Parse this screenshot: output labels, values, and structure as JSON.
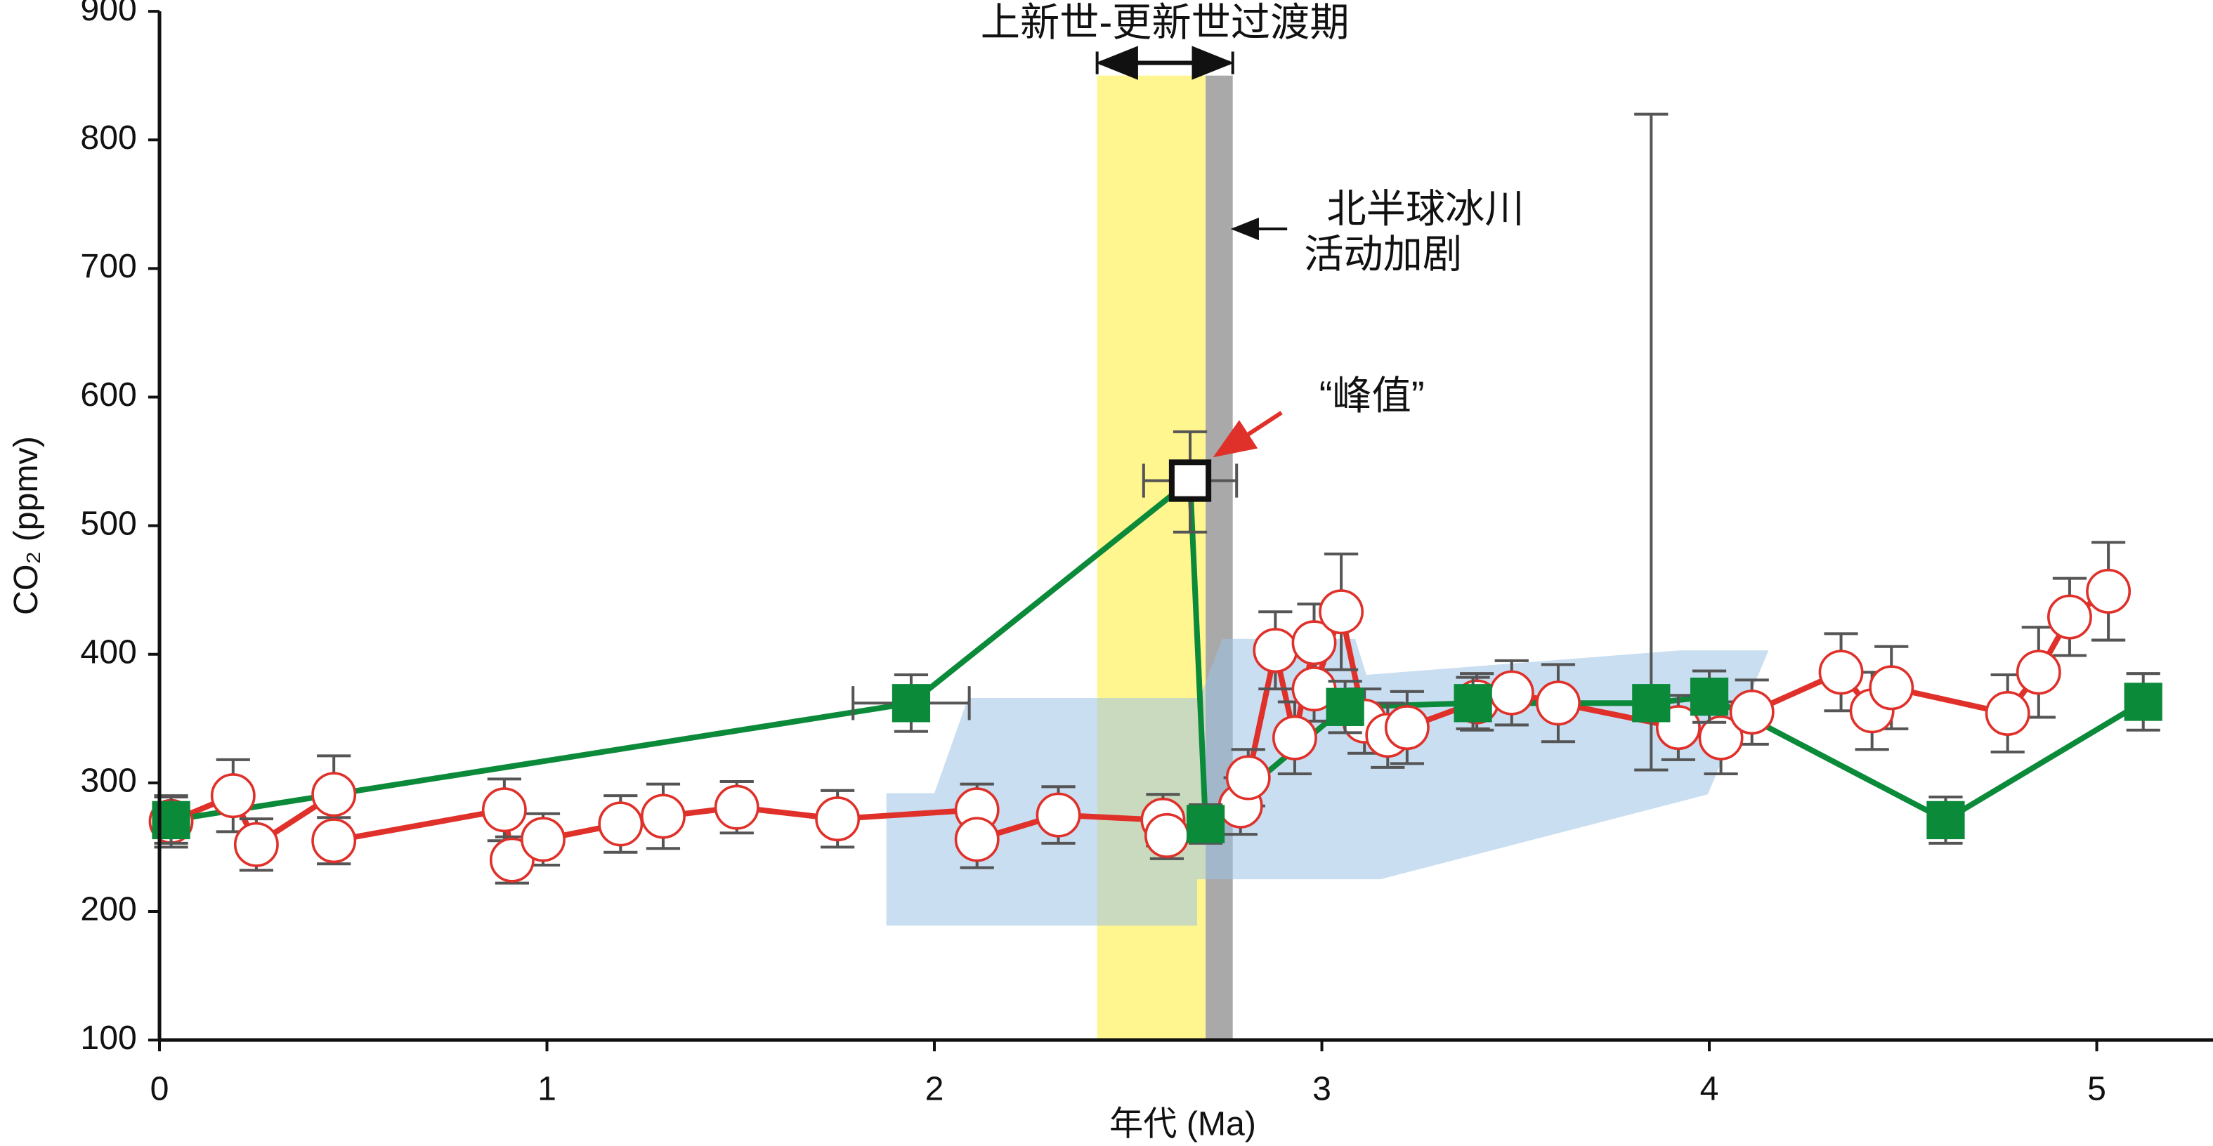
{
  "chart_data": {
    "type": "line",
    "xlabel": "年代 (Ma)",
    "ylabel": "CO₂ (ppmv)",
    "xlim": [
      0,
      5.3
    ],
    "xticks": [
      0,
      1,
      2,
      3,
      4,
      5
    ],
    "ylim": [
      100,
      900
    ],
    "yticks": [
      100,
      200,
      300,
      400,
      500,
      600,
      700,
      800,
      900
    ],
    "bands": [
      {
        "x0": 2.42,
        "x1": 2.7,
        "top": 850,
        "color": "#fff68f"
      },
      {
        "x0": 2.7,
        "x1": 2.77,
        "top": 850,
        "color": "#a9a9a9"
      }
    ],
    "band_label": "上新世-更新世过渡期",
    "shaded_region": {
      "color": "#9dc3e6",
      "x": [
        1.876,
        2.0,
        2.087,
        2.685,
        2.743,
        3.086,
        3.115,
        3.924,
        4.153,
        3.996,
        3.151,
        2.678,
        2.678,
        1.876
      ],
      "y": [
        292,
        292,
        366,
        366,
        412,
        412,
        384,
        403,
        403,
        291,
        225,
        225,
        189,
        189
      ]
    },
    "annotations": [
      "北半球冰川",
      "活动加剧",
      "“峰值”"
    ],
    "series": [
      {
        "color": "#e0302a",
        "marker": "circle",
        "x": [
          0.03,
          0.19,
          0.25,
          0.45,
          0.45,
          0.89,
          0.91,
          0.99,
          1.19,
          1.3,
          1.49,
          1.75,
          2.11,
          2.11,
          2.32,
          2.59,
          2.6,
          2.79,
          2.81,
          2.88,
          2.93,
          2.98,
          2.98,
          3.05,
          3.11,
          3.17,
          3.22,
          3.4,
          3.49,
          3.61,
          3.92,
          4.03,
          4.11,
          4.34,
          4.42,
          4.47,
          4.77,
          4.85,
          4.93,
          5.03
        ],
        "values": [
          270,
          290,
          252,
          291,
          255,
          279,
          240,
          256,
          268,
          274,
          281,
          272,
          279,
          256,
          275,
          271,
          259,
          282,
          304,
          403,
          335,
          409,
          373,
          433,
          348,
          337,
          343,
          363,
          370,
          362,
          343,
          335,
          355,
          386,
          356,
          374,
          354,
          386,
          429,
          449
        ],
        "yerr": [
          20,
          28,
          20,
          30,
          18,
          24,
          18,
          20,
          22,
          25,
          20,
          22,
          20,
          22,
          22,
          20,
          18,
          22,
          22,
          30,
          28,
          30,
          25,
          45,
          25,
          25,
          28,
          22,
          25,
          30,
          25,
          28,
          25,
          30,
          30,
          32,
          30,
          35,
          30,
          38
        ]
      },
      {
        "color": "#0b8a3a",
        "marker": "square",
        "open_markers": [
          2
        ],
        "x": [
          0.03,
          1.94,
          2.66,
          2.7,
          3.06,
          3.39,
          3.85,
          4.0,
          4.61,
          5.12
        ],
        "values": [
          271,
          362,
          535,
          268,
          359,
          362,
          362,
          367,
          271,
          363
        ],
        "yerr_minus": [
          18,
          22,
          40,
          15,
          20,
          20,
          52,
          20,
          18,
          22
        ],
        "yerr_plus": [
          18,
          22,
          38,
          15,
          20,
          20,
          458,
          20,
          18,
          22
        ],
        "xerr": [
          0,
          0.15,
          0.12,
          0,
          0,
          0,
          0,
          0,
          0,
          0
        ]
      }
    ]
  }
}
